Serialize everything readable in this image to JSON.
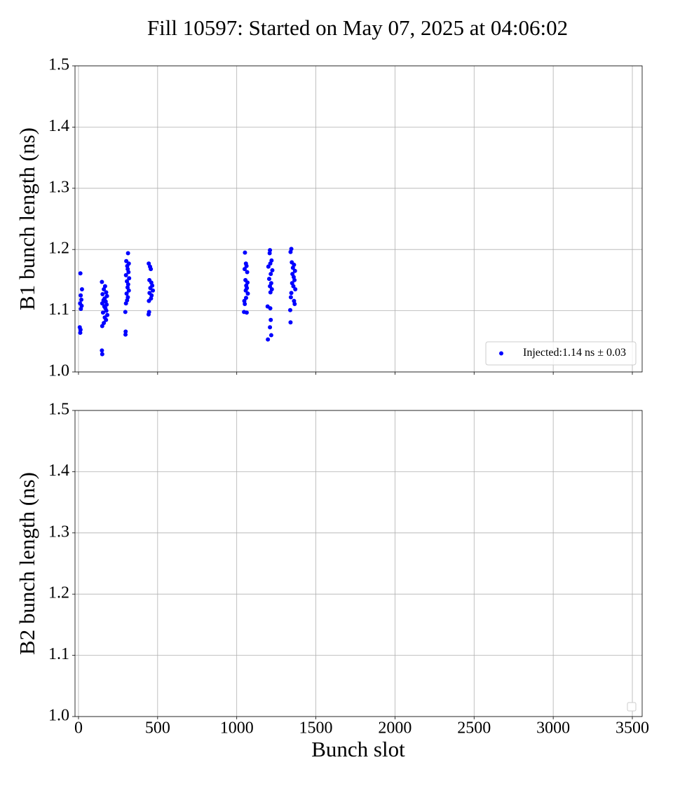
{
  "chart_data": [
    {
      "type": "scatter",
      "title": "Fill 10597: Started on May 07, 2025 at 04:06:02",
      "ylabel": "B1 bunch length (ns)",
      "series": [
        {
          "name": "Injected:1.14 ns ± 0.03",
          "color": "#0000ff",
          "x": [
            12,
            22,
            14,
            18,
            10,
            20,
            15,
            8,
            13,
            11,
            148,
            168,
            160,
            175,
            152,
            180,
            165,
            158,
            172,
            150,
            178,
            163,
            170,
            176,
            155,
            182,
            166,
            174,
            160,
            150,
            148,
            150,
            313,
            302,
            318,
            308,
            311,
            316,
            300,
            320,
            306,
            314,
            310,
            318,
            304,
            312,
            307,
            300,
            296,
            298,
            297,
            444,
            452,
            457,
            448,
            460,
            466,
            454,
            470,
            449,
            462,
            458,
            445,
            446,
            443,
            1052,
            1058,
            1062,
            1050,
            1066,
            1055,
            1068,
            1060,
            1064,
            1057,
            1070,
            1059,
            1048,
            1051,
            1046,
            1063,
            1210,
            1208,
            1220,
            1212,
            1200,
            1225,
            1215,
            1205,
            1218,
            1210,
            1222,
            1213,
            1195,
            1212,
            1215,
            1210,
            1218,
            1197,
            1345,
            1340,
            1348,
            1362,
            1355,
            1368,
            1352,
            1360,
            1365,
            1350,
            1358,
            1370,
            1345,
            1342,
            1362,
            1366,
            1338,
            1340
          ],
          "y": [
            1.161,
            1.135,
            1.125,
            1.118,
            1.112,
            1.108,
            1.103,
            1.073,
            1.069,
            1.064,
            1.147,
            1.14,
            1.135,
            1.13,
            1.127,
            1.124,
            1.12,
            1.117,
            1.115,
            1.112,
            1.11,
            1.107,
            1.104,
            1.1,
            1.097,
            1.093,
            1.089,
            1.085,
            1.08,
            1.075,
            1.035,
            1.029,
            1.194,
            1.181,
            1.177,
            1.173,
            1.168,
            1.163,
            1.158,
            1.153,
            1.148,
            1.143,
            1.138,
            1.133,
            1.128,
            1.122,
            1.117,
            1.112,
            1.098,
            1.066,
            1.061,
            1.177,
            1.172,
            1.168,
            1.15,
            1.146,
            1.141,
            1.137,
            1.133,
            1.129,
            1.125,
            1.12,
            1.116,
            1.098,
            1.094,
            1.195,
            1.177,
            1.173,
            1.168,
            1.163,
            1.15,
            1.146,
            1.141,
            1.137,
            1.133,
            1.128,
            1.121,
            1.116,
            1.111,
            1.098,
            1.097,
            1.199,
            1.194,
            1.182,
            1.177,
            1.172,
            1.166,
            1.16,
            1.152,
            1.145,
            1.14,
            1.135,
            1.13,
            1.107,
            1.104,
            1.085,
            1.073,
            1.06,
            1.053,
            1.201,
            1.196,
            1.179,
            1.175,
            1.17,
            1.165,
            1.16,
            1.155,
            1.15,
            1.145,
            1.14,
            1.135,
            1.129,
            1.122,
            1.116,
            1.111,
            1.101,
            1.081
          ]
        }
      ],
      "ylim": [
        1.0,
        1.5
      ],
      "yticks": [
        {
          "value": 1,
          "label": "1.0"
        },
        1.1,
        1.2,
        1.3,
        1.4,
        1.5
      ],
      "grid": true,
      "legend": "lower right"
    },
    {
      "type": "scatter",
      "ylabel": "B2 bunch length (ns)",
      "xlabel": "Bunch slot",
      "series": [],
      "xlim": [
        -22,
        3562
      ],
      "xticks": [
        0,
        500,
        1000,
        1500,
        2000,
        2500,
        3000,
        3500
      ],
      "ylim": [
        1.0,
        1.5
      ],
      "yticks": [
        {
          "value": 1,
          "label": "1.0"
        },
        1.1,
        1.2,
        1.3,
        1.4,
        1.5
      ],
      "grid": true,
      "legend": "lower right"
    }
  ]
}
